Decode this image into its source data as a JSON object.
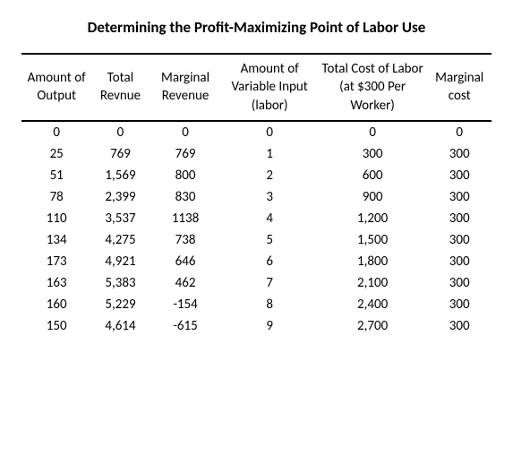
{
  "title": "Determining the Profit-Maximizing Point of Labor Use",
  "table": {
    "columns": [
      "Amount of Output",
      "Total Revnue",
      "Marginal Revenue",
      "Amount of Variable Input (labor)",
      "Total Cost of Labor (at $300 Per Worker)",
      "Marginal cost"
    ],
    "rows": [
      [
        "0",
        "0",
        "0",
        "0",
        "0",
        "0"
      ],
      [
        "25",
        "769",
        "769",
        "1",
        "300",
        "300"
      ],
      [
        "51",
        "1,569",
        "800",
        "2",
        "600",
        "300"
      ],
      [
        "78",
        "2,399",
        "830",
        "3",
        "900",
        "300"
      ],
      [
        "110",
        "3,537",
        "1138",
        "4",
        "1,200",
        "300"
      ],
      [
        "134",
        "4,275",
        "738",
        "5",
        "1,500",
        "300"
      ],
      [
        "173",
        "4,921",
        "646",
        "6",
        "1,800",
        "300"
      ],
      [
        "163",
        "5,383",
        "462",
        "7",
        "2,100",
        "300"
      ],
      [
        "160",
        "5,229",
        "-154",
        "8",
        "2,400",
        "300"
      ],
      [
        "150",
        "4,614",
        "-615",
        "9",
        "2,700",
        "300"
      ]
    ],
    "title_fontsize": 17,
    "header_fontsize": 15,
    "cell_fontsize": 15,
    "background_color": "#ffffff",
    "text_color": "#000000",
    "border_color": "#000000",
    "header_border_width": 2
  }
}
